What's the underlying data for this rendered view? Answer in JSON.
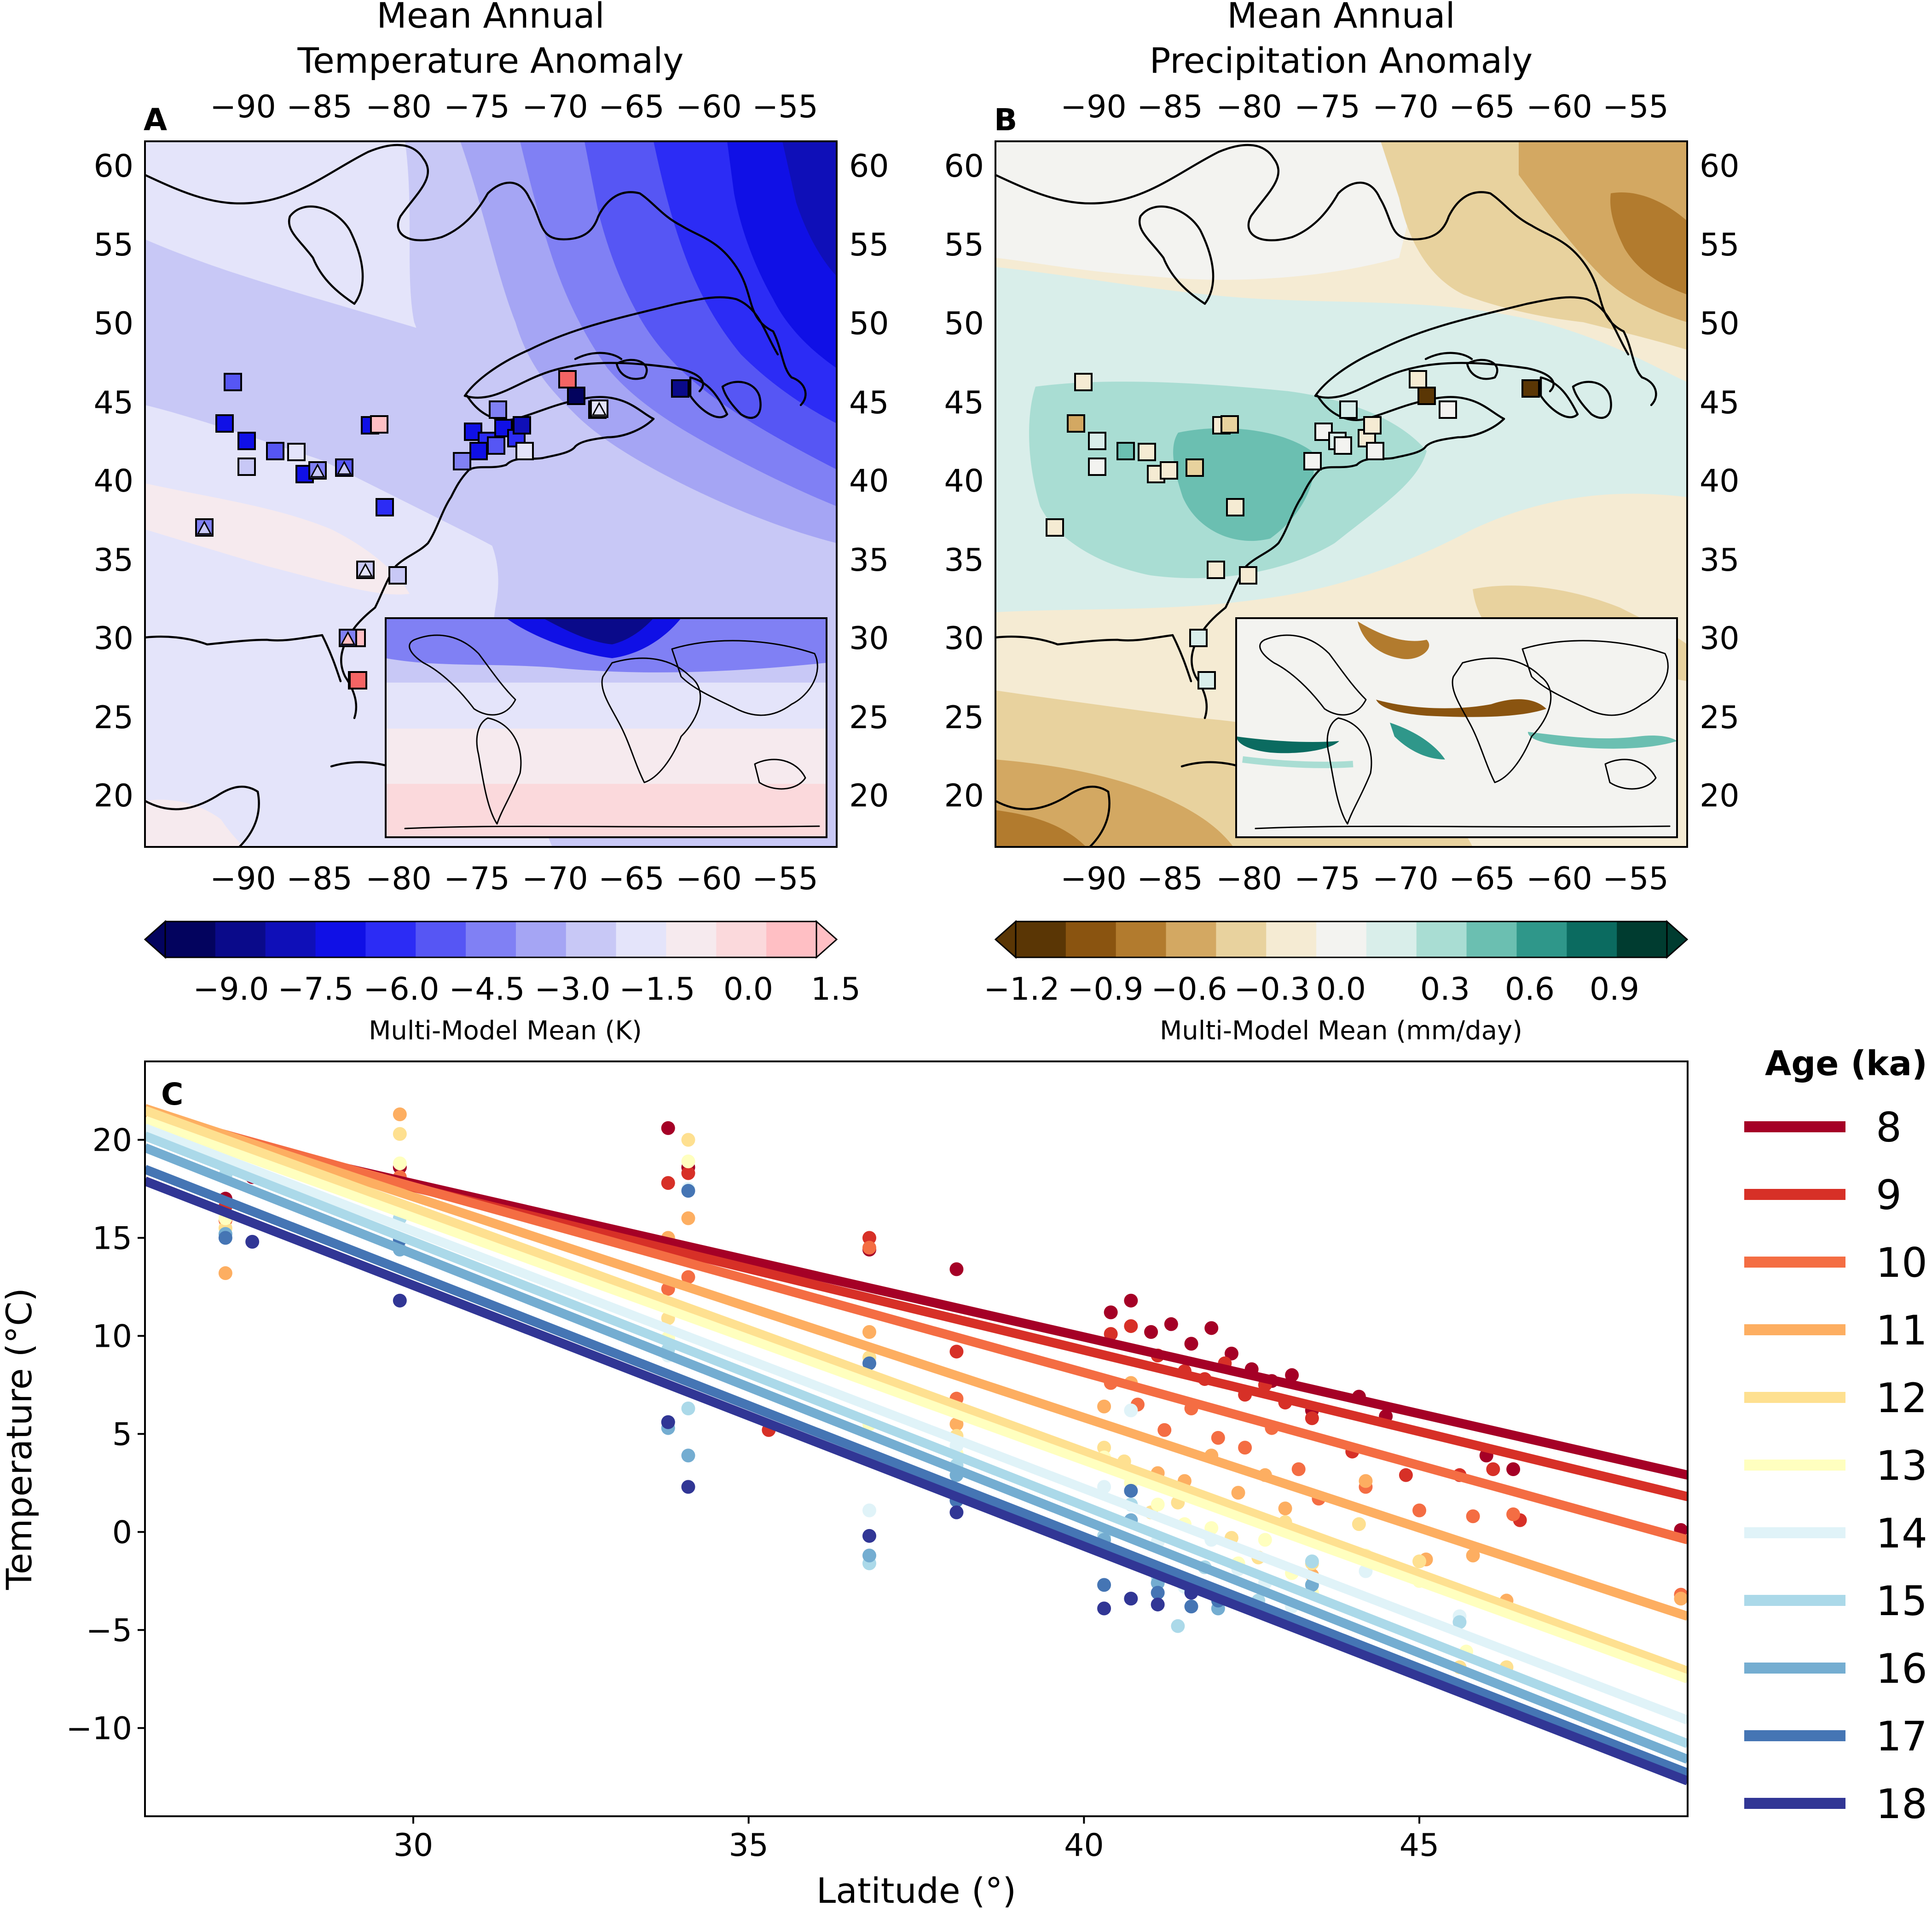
{
  "panel_a": {
    "letter": "A",
    "title_line1": "Mean Annual",
    "title_line2": "Temperature Anomaly",
    "inset": "global map inset",
    "colorbar_label": "Multi-Model Mean (K)",
    "colorbar_ticks": [
      "−9.0",
      "−7.5",
      "−6.0",
      "−4.5",
      "−3.0",
      "−1.5",
      "0.0",
      "1.5"
    ]
  },
  "panel_b": {
    "letter": "B",
    "title_line1": "Mean Annual",
    "title_line2": "Precipitation Anomaly",
    "inset": "global map inset",
    "colorbar_label": "Multi-Model Mean (mm/day)",
    "colorbar_ticks": [
      "−1.2",
      "−0.9",
      "−0.6",
      "−0.3",
      "0.0",
      "0.3",
      "0.6",
      "0.9"
    ]
  },
  "map_axes": {
    "lon_ticks": [
      "−90",
      "−85",
      "−80",
      "−75",
      "−70",
      "−65",
      "−60",
      "−55"
    ],
    "lat_ticks": [
      "60",
      "55",
      "50",
      "45",
      "40",
      "35",
      "30",
      "25",
      "20"
    ]
  },
  "colors": {
    "temp_scale": [
      "#03035e",
      "#0a0a8a",
      "#0f0fb8",
      "#1010e6",
      "#2c2cf5",
      "#5656f4",
      "#8080f4",
      "#a5a5f4",
      "#c8c8f6",
      "#e4e4fa",
      "#f6eaee",
      "#fbd9dc",
      "#ffbfc4"
    ],
    "precip_scale": [
      "#5a3605",
      "#8a5410",
      "#b27b2e",
      "#d3a862",
      "#e8d29e",
      "#f5ebd3",
      "#f3f3f0",
      "#d9eeea",
      "#a9ddd3",
      "#6bbfb1",
      "#2f978a",
      "#0b6b60",
      "#003c30"
    ]
  },
  "chart_data": [
    {
      "type": "scatter",
      "panel": "C",
      "title": "",
      "xlabel": "Latitude (°)",
      "ylabel": "Temperature (°C)",
      "xlim": [
        26,
        49
      ],
      "ylim": [
        -14.5,
        24
      ],
      "x_ticks": [
        30,
        35,
        40,
        45
      ],
      "y_ticks": [
        20,
        15,
        10,
        5,
        0,
        -5,
        -10
      ],
      "y_tick_labels": [
        "20",
        "15",
        "10",
        "5",
        "0",
        "−5",
        "−10"
      ],
      "grid": false,
      "legend_position": "right",
      "legend_title": "Age (ka)",
      "series": [
        {
          "name": "8",
          "color": "#a50026",
          "fit": {
            "x": [
              26,
              49
            ],
            "y": [
              20.9,
              2.9
            ]
          },
          "points": [
            [
              27.2,
              17.0
            ],
            [
              27.6,
              18.1
            ],
            [
              29.8,
              18.6
            ],
            [
              33.8,
              20.6
            ],
            [
              34.1,
              18.6
            ],
            [
              36.8,
              14.4
            ],
            [
              38.1,
              13.4
            ],
            [
              40.4,
              11.2
            ],
            [
              40.7,
              11.8
            ],
            [
              41.0,
              10.2
            ],
            [
              41.3,
              10.6
            ],
            [
              41.6,
              9.6
            ],
            [
              41.9,
              10.4
            ],
            [
              42.2,
              9.1
            ],
            [
              42.5,
              8.3
            ],
            [
              42.8,
              7.7
            ],
            [
              43.1,
              8.0
            ],
            [
              43.4,
              6.2
            ],
            [
              44.1,
              6.9
            ],
            [
              44.5,
              5.9
            ],
            [
              46.0,
              3.9
            ],
            [
              46.4,
              3.2
            ],
            [
              48.9,
              0.1
            ]
          ]
        },
        {
          "name": "9",
          "color": "#d73027",
          "fit": {
            "x": [
              26,
              49
            ],
            "y": [
              20.9,
              1.8
            ]
          },
          "points": [
            [
              27.2,
              16.6
            ],
            [
              29.8,
              17.8
            ],
            [
              33.8,
              17.8
            ],
            [
              34.1,
              18.3
            ],
            [
              35.3,
              5.2
            ],
            [
              36.8,
              15.0
            ],
            [
              38.1,
              9.2
            ],
            [
              40.4,
              10.1
            ],
            [
              40.7,
              10.5
            ],
            [
              41.1,
              9.0
            ],
            [
              41.5,
              8.2
            ],
            [
              41.8,
              7.8
            ],
            [
              42.1,
              8.6
            ],
            [
              42.4,
              7.0
            ],
            [
              42.7,
              7.5
            ],
            [
              43.0,
              6.6
            ],
            [
              43.4,
              5.8
            ],
            [
              44.0,
              4.1
            ],
            [
              44.8,
              2.9
            ],
            [
              45.6,
              2.9
            ],
            [
              46.1,
              3.2
            ],
            [
              46.5,
              0.6
            ]
          ]
        },
        {
          "name": "10",
          "color": "#f46d43",
          "fit": {
            "x": [
              26,
              49
            ],
            "y": [
              21.4,
              -0.4
            ]
          },
          "points": [
            [
              27.2,
              15.9
            ],
            [
              29.8,
              18.1
            ],
            [
              33.8,
              12.4
            ],
            [
              34.1,
              13.0
            ],
            [
              36.8,
              14.5
            ],
            [
              38.1,
              6.8
            ],
            [
              40.4,
              7.6
            ],
            [
              40.8,
              6.5
            ],
            [
              41.2,
              5.2
            ],
            [
              41.6,
              6.3
            ],
            [
              42.0,
              4.8
            ],
            [
              42.4,
              4.3
            ],
            [
              42.8,
              5.3
            ],
            [
              43.2,
              3.2
            ],
            [
              43.5,
              1.7
            ],
            [
              44.2,
              2.3
            ],
            [
              45.0,
              1.1
            ],
            [
              45.8,
              0.8
            ],
            [
              46.4,
              0.9
            ],
            [
              48.9,
              -3.2
            ]
          ]
        },
        {
          "name": "11",
          "color": "#fdae61",
          "fit": {
            "x": [
              26,
              49
            ],
            "y": [
              21.6,
              -4.3
            ]
          },
          "points": [
            [
              27.2,
              13.2
            ],
            [
              29.8,
              21.3
            ],
            [
              33.8,
              15.0
            ],
            [
              34.1,
              16.0
            ],
            [
              36.8,
              10.2
            ],
            [
              38.1,
              5.5
            ],
            [
              40.3,
              6.4
            ],
            [
              40.7,
              7.6
            ],
            [
              41.1,
              3.0
            ],
            [
              41.5,
              2.6
            ],
            [
              41.9,
              3.9
            ],
            [
              42.3,
              2.0
            ],
            [
              42.7,
              2.9
            ],
            [
              43.0,
              1.2
            ],
            [
              43.4,
              -2.2
            ],
            [
              44.2,
              2.6
            ],
            [
              45.1,
              -1.4
            ],
            [
              45.8,
              -1.2
            ],
            [
              46.3,
              -3.5
            ],
            [
              48.9,
              -3.4
            ]
          ]
        },
        {
          "name": "12",
          "color": "#fee090",
          "fit": {
            "x": [
              26,
              49
            ],
            "y": [
              21.5,
              -7.1
            ]
          },
          "points": [
            [
              27.2,
              15.5
            ],
            [
              29.8,
              20.3
            ],
            [
              33.8,
              10.9
            ],
            [
              34.1,
              20.0
            ],
            [
              36.8,
              8.9
            ],
            [
              38.1,
              4.9
            ],
            [
              40.3,
              4.3
            ],
            [
              40.6,
              3.6
            ],
            [
              41.0,
              1.0
            ],
            [
              41.4,
              1.5
            ],
            [
              41.8,
              1.7
            ],
            [
              42.2,
              -0.3
            ],
            [
              42.6,
              -1.3
            ],
            [
              43.0,
              0.5
            ],
            [
              43.4,
              -1.6
            ],
            [
              44.1,
              0.4
            ],
            [
              45.0,
              -1.5
            ],
            [
              45.6,
              -6.9
            ],
            [
              46.3,
              -6.9
            ]
          ]
        },
        {
          "name": "13",
          "color": "#ffffbf",
          "fit": {
            "x": [
              26,
              49
            ],
            "y": [
              21.0,
              -7.5
            ]
          },
          "points": [
            [
              27.2,
              16.0
            ],
            [
              29.8,
              18.8
            ],
            [
              33.8,
              9.9
            ],
            [
              34.1,
              18.9
            ],
            [
              36.8,
              5.5
            ],
            [
              38.1,
              4.0
            ],
            [
              40.3,
              3.8
            ],
            [
              40.7,
              2.5
            ],
            [
              41.1,
              1.4
            ],
            [
              41.5,
              0.4
            ],
            [
              41.9,
              0.2
            ],
            [
              42.3,
              -1.6
            ],
            [
              42.7,
              -0.4
            ],
            [
              43.1,
              -2.1
            ],
            [
              43.4,
              -3.1
            ],
            [
              44.2,
              -1.2
            ],
            [
              45.0,
              -2.5
            ],
            [
              45.7,
              -6.1
            ]
          ]
        },
        {
          "name": "14",
          "color": "#e0f3f8",
          "fit": {
            "x": [
              26,
              49
            ],
            "y": [
              20.6,
              -9.6
            ]
          },
          "points": [
            [
              27.2,
              18.6
            ],
            [
              29.8,
              16.5
            ],
            [
              33.8,
              9.0
            ],
            [
              34.1,
              17.5
            ],
            [
              36.8,
              1.1
            ],
            [
              38.1,
              4.4
            ],
            [
              40.3,
              2.3
            ],
            [
              40.7,
              6.2
            ],
            [
              41.1,
              -0.5
            ],
            [
              41.5,
              -2.8
            ],
            [
              41.9,
              -0.4
            ],
            [
              42.3,
              -1.9
            ],
            [
              42.7,
              -2.6
            ],
            [
              43.1,
              -3.8
            ],
            [
              43.4,
              -0.3
            ],
            [
              44.2,
              -2.0
            ],
            [
              45.6,
              -4.3
            ]
          ]
        },
        {
          "name": "15",
          "color": "#abd9e9",
          "fit": {
            "x": [
              26,
              49
            ],
            "y": [
              20.2,
              -10.8
            ]
          },
          "points": [
            [
              27.2,
              18.2
            ],
            [
              29.8,
              16.0
            ],
            [
              33.8,
              9.3
            ],
            [
              34.1,
              6.3
            ],
            [
              36.8,
              -1.6
            ],
            [
              38.1,
              3.4
            ],
            [
              40.3,
              -0.2
            ],
            [
              40.7,
              1.4
            ],
            [
              41.1,
              -2.3
            ],
            [
              41.4,
              -4.8
            ],
            [
              41.8,
              -1.8
            ],
            [
              42.2,
              -3.4
            ],
            [
              42.6,
              -3.5
            ],
            [
              43.4,
              -1.5
            ],
            [
              45.6,
              -4.6
            ]
          ]
        },
        {
          "name": "16",
          "color": "#74add1",
          "fit": {
            "x": [
              26,
              49
            ],
            "y": [
              19.6,
              -11.6
            ]
          },
          "points": [
            [
              27.2,
              15.2
            ],
            [
              29.8,
              14.4
            ],
            [
              33.8,
              5.3
            ],
            [
              34.1,
              3.9
            ],
            [
              36.8,
              -1.2
            ],
            [
              38.1,
              2.9
            ],
            [
              40.3,
              -0.4
            ],
            [
              40.7,
              0.6
            ],
            [
              41.1,
              -2.6
            ],
            [
              41.6,
              -3.0
            ],
            [
              42.0,
              -3.9
            ],
            [
              43.4,
              -2.7
            ]
          ]
        },
        {
          "name": "17",
          "color": "#4575b4",
          "fit": {
            "x": [
              26,
              49
            ],
            "y": [
              18.5,
              -12.3
            ]
          },
          "points": [
            [
              27.2,
              15.0
            ],
            [
              29.8,
              14.9
            ],
            [
              33.8,
              5.6
            ],
            [
              34.1,
              17.4
            ],
            [
              36.8,
              8.6
            ],
            [
              38.1,
              1.6
            ],
            [
              40.3,
              -2.7
            ],
            [
              40.7,
              2.1
            ],
            [
              41.1,
              -3.1
            ],
            [
              41.6,
              -3.8
            ],
            [
              42.0,
              -3.5
            ]
          ]
        },
        {
          "name": "18",
          "color": "#313695",
          "fit": {
            "x": [
              26,
              49
            ],
            "y": [
              17.9,
              -12.7
            ]
          },
          "points": [
            [
              27.6,
              14.8
            ],
            [
              29.8,
              11.8
            ],
            [
              33.8,
              5.6
            ],
            [
              34.1,
              2.3
            ],
            [
              36.8,
              -0.2
            ],
            [
              38.1,
              1.0
            ],
            [
              40.3,
              -3.9
            ],
            [
              40.7,
              -3.4
            ],
            [
              41.1,
              -3.7
            ],
            [
              41.6,
              -3.1
            ]
          ]
        }
      ]
    }
  ]
}
